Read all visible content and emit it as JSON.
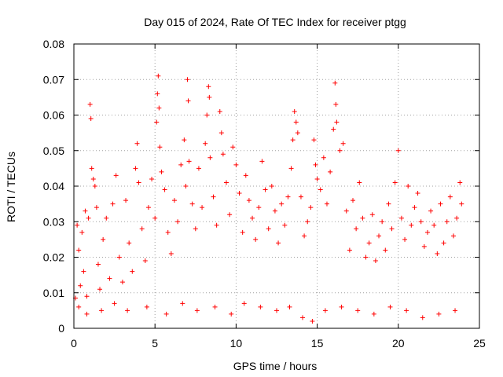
{
  "chart_data": {
    "type": "scatter",
    "title": "Day 015 of 2024, Rate Of TEC Index for receiver ptgg",
    "xlabel": "GPS time / hours",
    "ylabel": "ROTI / TECUs",
    "xlim": [
      0,
      25
    ],
    "ylim": [
      0,
      0.08
    ],
    "x_ticks": [
      0,
      5,
      10,
      15,
      20,
      25
    ],
    "y_ticks": [
      0,
      0.01,
      0.02,
      0.03,
      0.04,
      0.05,
      0.06,
      0.07,
      0.08
    ],
    "x_tick_labels": [
      "0",
      "5",
      "10",
      "15",
      "20",
      "25"
    ],
    "y_tick_labels": [
      "0",
      "0.01",
      "0.02",
      "0.03",
      "0.04",
      "0.05",
      "0.06",
      "0.07",
      "0.08"
    ],
    "grid": true,
    "marker": "plus",
    "series": [
      {
        "name": "ROTI",
        "color": "#ff0000",
        "points": [
          [
            0.1,
            0.0085
          ],
          [
            0.2,
            0.029
          ],
          [
            0.3,
            0.022
          ],
          [
            0.4,
            0.012
          ],
          [
            0.5,
            0.027
          ],
          [
            0.6,
            0.016
          ],
          [
            0.7,
            0.033
          ],
          [
            0.8,
            0.009
          ],
          [
            0.9,
            0.031
          ],
          [
            1.0,
            0.063
          ],
          [
            1.05,
            0.059
          ],
          [
            1.1,
            0.045
          ],
          [
            1.2,
            0.042
          ],
          [
            1.3,
            0.04
          ],
          [
            1.4,
            0.034
          ],
          [
            1.5,
            0.018
          ],
          [
            1.6,
            0.011
          ],
          [
            1.8,
            0.025
          ],
          [
            2.0,
            0.031
          ],
          [
            2.2,
            0.014
          ],
          [
            2.4,
            0.035
          ],
          [
            2.6,
            0.043
          ],
          [
            2.8,
            0.02
          ],
          [
            3.0,
            0.013
          ],
          [
            3.2,
            0.036
          ],
          [
            3.4,
            0.024
          ],
          [
            3.6,
            0.016
          ],
          [
            3.8,
            0.045
          ],
          [
            3.9,
            0.052
          ],
          [
            4.0,
            0.041
          ],
          [
            4.2,
            0.028
          ],
          [
            4.4,
            0.019
          ],
          [
            4.6,
            0.034
          ],
          [
            4.8,
            0.042
          ],
          [
            5.0,
            0.031
          ],
          [
            5.1,
            0.058
          ],
          [
            5.15,
            0.066
          ],
          [
            5.2,
            0.071
          ],
          [
            5.25,
            0.062
          ],
          [
            5.3,
            0.051
          ],
          [
            5.4,
            0.044
          ],
          [
            5.6,
            0.039
          ],
          [
            5.8,
            0.027
          ],
          [
            6.0,
            0.021
          ],
          [
            6.2,
            0.036
          ],
          [
            6.4,
            0.03
          ],
          [
            6.6,
            0.046
          ],
          [
            6.8,
            0.053
          ],
          [
            6.9,
            0.04
          ],
          [
            7.0,
            0.07
          ],
          [
            7.05,
            0.064
          ],
          [
            7.1,
            0.047
          ],
          [
            7.3,
            0.035
          ],
          [
            7.5,
            0.028
          ],
          [
            7.7,
            0.045
          ],
          [
            7.9,
            0.034
          ],
          [
            8.1,
            0.052
          ],
          [
            8.2,
            0.06
          ],
          [
            8.3,
            0.068
          ],
          [
            8.35,
            0.065
          ],
          [
            8.4,
            0.048
          ],
          [
            8.6,
            0.037
          ],
          [
            8.8,
            0.029
          ],
          [
            9.0,
            0.061
          ],
          [
            9.1,
            0.055
          ],
          [
            9.2,
            0.049
          ],
          [
            9.4,
            0.041
          ],
          [
            9.6,
            0.032
          ],
          [
            9.8,
            0.051
          ],
          [
            10.0,
            0.046
          ],
          [
            10.2,
            0.038
          ],
          [
            10.4,
            0.027
          ],
          [
            10.6,
            0.043
          ],
          [
            10.8,
            0.036
          ],
          [
            11.0,
            0.031
          ],
          [
            11.2,
            0.025
          ],
          [
            11.4,
            0.034
          ],
          [
            11.6,
            0.047
          ],
          [
            11.8,
            0.039
          ],
          [
            12.0,
            0.028
          ],
          [
            12.2,
            0.04
          ],
          [
            12.4,
            0.033
          ],
          [
            12.6,
            0.024
          ],
          [
            12.8,
            0.035
          ],
          [
            13.0,
            0.029
          ],
          [
            13.2,
            0.037
          ],
          [
            13.4,
            0.045
          ],
          [
            13.5,
            0.053
          ],
          [
            13.6,
            0.061
          ],
          [
            13.7,
            0.058
          ],
          [
            13.8,
            0.055
          ],
          [
            14.0,
            0.037
          ],
          [
            14.2,
            0.026
          ],
          [
            14.4,
            0.03
          ],
          [
            14.6,
            0.034
          ],
          [
            14.8,
            0.053
          ],
          [
            14.9,
            0.046
          ],
          [
            15.0,
            0.042
          ],
          [
            15.2,
            0.039
          ],
          [
            15.4,
            0.048
          ],
          [
            15.6,
            0.035
          ],
          [
            15.8,
            0.044
          ],
          [
            16.0,
            0.056
          ],
          [
            16.1,
            0.069
          ],
          [
            16.15,
            0.063
          ],
          [
            16.2,
            0.058
          ],
          [
            16.4,
            0.05
          ],
          [
            16.6,
            0.052
          ],
          [
            16.8,
            0.033
          ],
          [
            17.0,
            0.022
          ],
          [
            17.2,
            0.036
          ],
          [
            17.4,
            0.028
          ],
          [
            17.6,
            0.041
          ],
          [
            17.8,
            0.031
          ],
          [
            18.0,
            0.02
          ],
          [
            18.2,
            0.024
          ],
          [
            18.4,
            0.032
          ],
          [
            18.6,
            0.019
          ],
          [
            18.8,
            0.026
          ],
          [
            19.0,
            0.03
          ],
          [
            19.2,
            0.022
          ],
          [
            19.4,
            0.035
          ],
          [
            19.6,
            0.028
          ],
          [
            19.8,
            0.041
          ],
          [
            20.0,
            0.05
          ],
          [
            20.2,
            0.031
          ],
          [
            20.4,
            0.025
          ],
          [
            20.6,
            0.04
          ],
          [
            20.8,
            0.029
          ],
          [
            21.0,
            0.034
          ],
          [
            21.2,
            0.038
          ],
          [
            21.4,
            0.03
          ],
          [
            21.6,
            0.023
          ],
          [
            21.8,
            0.027
          ],
          [
            22.0,
            0.033
          ],
          [
            22.2,
            0.029
          ],
          [
            22.4,
            0.021
          ],
          [
            22.6,
            0.035
          ],
          [
            22.8,
            0.024
          ],
          [
            23.0,
            0.03
          ],
          [
            23.2,
            0.037
          ],
          [
            23.4,
            0.026
          ],
          [
            23.6,
            0.031
          ],
          [
            23.8,
            0.041
          ],
          [
            23.9,
            0.035
          ],
          [
            0.3,
            0.006
          ],
          [
            0.8,
            0.004
          ],
          [
            1.7,
            0.005
          ],
          [
            2.5,
            0.007
          ],
          [
            3.3,
            0.005
          ],
          [
            4.5,
            0.006
          ],
          [
            5.7,
            0.004
          ],
          [
            6.7,
            0.007
          ],
          [
            7.6,
            0.005
          ],
          [
            8.7,
            0.006
          ],
          [
            9.7,
            0.004
          ],
          [
            10.5,
            0.007
          ],
          [
            11.5,
            0.006
          ],
          [
            12.5,
            0.005
          ],
          [
            13.3,
            0.006
          ],
          [
            14.1,
            0.003
          ],
          [
            14.7,
            0.002
          ],
          [
            15.5,
            0.005
          ],
          [
            16.5,
            0.006
          ],
          [
            17.5,
            0.005
          ],
          [
            18.5,
            0.004
          ],
          [
            19.5,
            0.006
          ],
          [
            20.5,
            0.005
          ],
          [
            21.5,
            0.003
          ],
          [
            22.5,
            0.004
          ],
          [
            23.5,
            0.005
          ]
        ]
      }
    ]
  }
}
